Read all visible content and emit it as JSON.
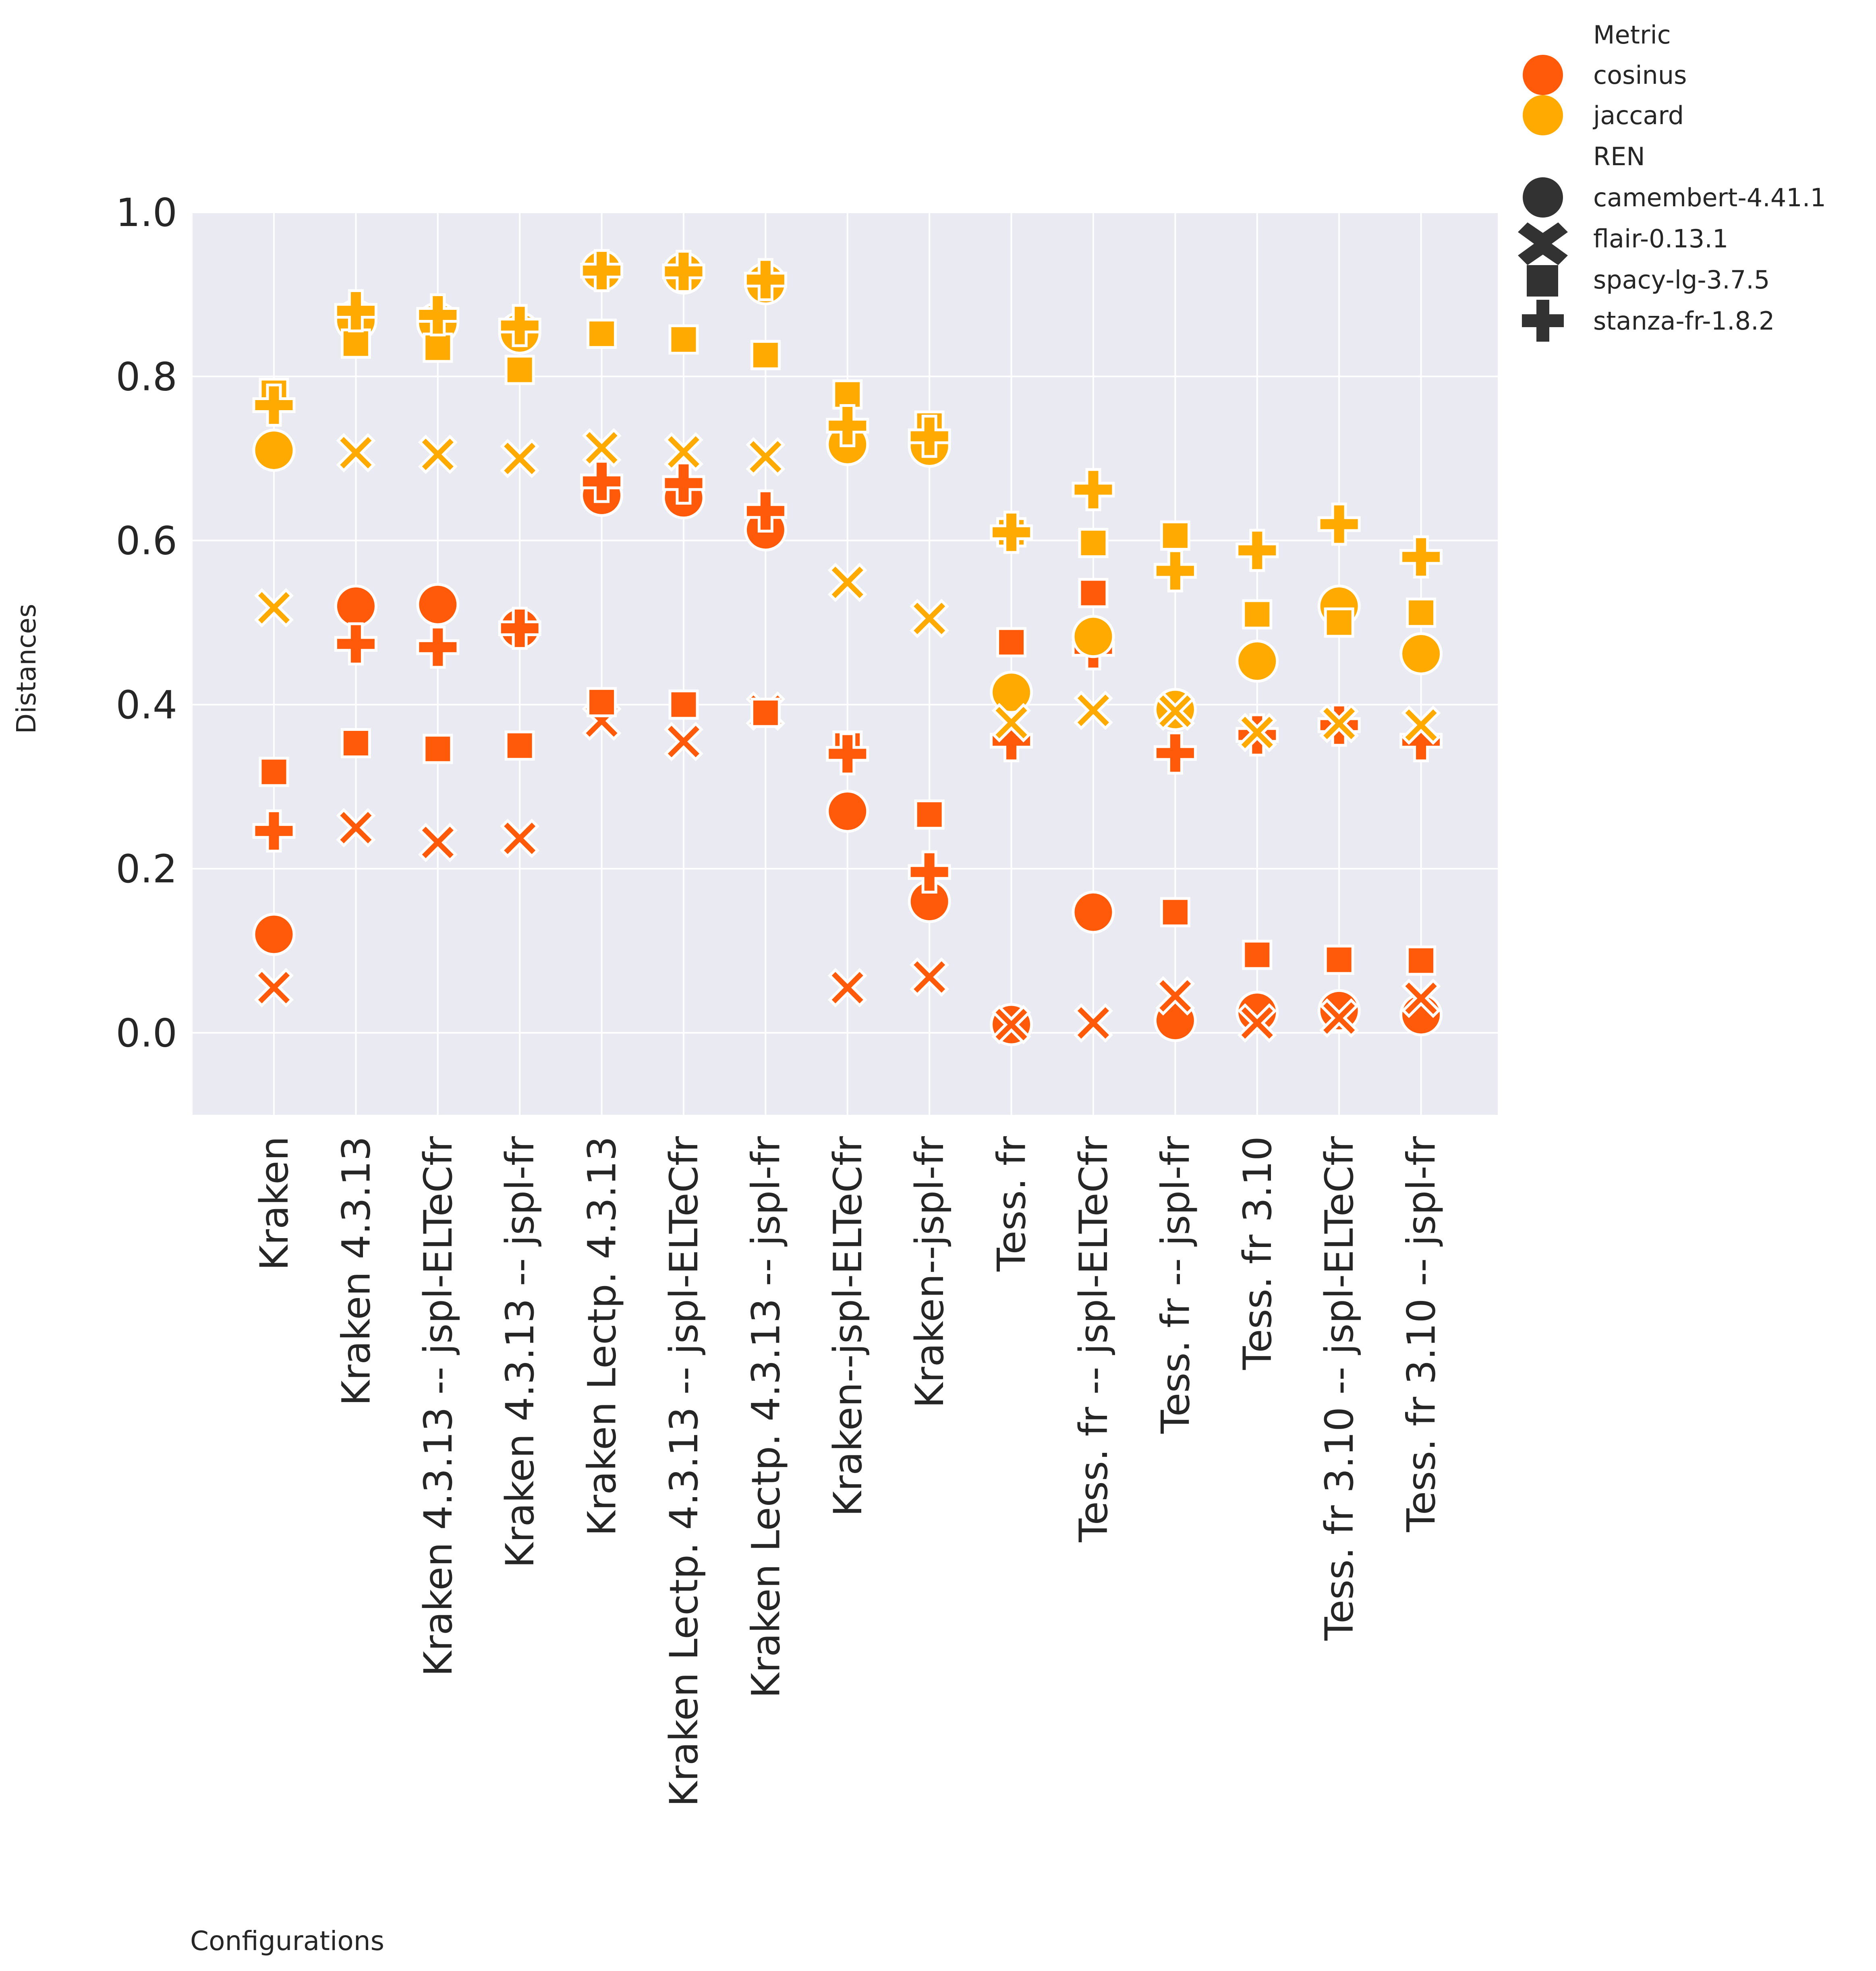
{
  "chart_data": {
    "type": "scatter",
    "title": "",
    "xlabel": "Configurations",
    "ylabel": "Distances",
    "ylim": [
      -0.1,
      1.0
    ],
    "yticks": [
      0.0,
      0.2,
      0.4,
      0.6,
      0.8,
      1.0
    ],
    "ytick_labels": [
      "0.0",
      "0.2",
      "0.4",
      "0.6",
      "0.8",
      "1.0"
    ],
    "grid": true,
    "legend_position": "upper right, outside plot",
    "categories": [
      "Kraken",
      "Kraken 4.3.13",
      "Kraken 4.3.13 -- jspl-ELTeCfr",
      "Kraken 4.3.13 -- jspl-fr",
      "Kraken Lectp. 4.3.13",
      "Kraken Lectp. 4.3.13 -- jspl-ELTeCfr",
      "Kraken Lectp. 4.3.13 -- jspl-fr",
      "Kraken--jspl-ELTeCfr",
      "Kraken--jspl-fr",
      "Tess. fr",
      "Tess. fr -- jspl-ELTeCfr",
      "Tess. fr -- jspl-fr",
      "Tess. fr 3.10",
      "Tess. fr 3.10 -- jspl-ELTeCfr",
      "Tess. fr 3.10 -- jspl-fr"
    ],
    "hue_title": "Metric",
    "style_title": "REN",
    "metrics": [
      {
        "name": "cosinus",
        "color": "#ff5a0a"
      },
      {
        "name": "jaccard",
        "color": "#ffaa00"
      }
    ],
    "rens": [
      {
        "name": "camembert-4.41.1",
        "marker": "circle"
      },
      {
        "name": "flair-0.13.1",
        "marker": "x"
      },
      {
        "name": "spacy-lg-3.7.5",
        "marker": "square"
      },
      {
        "name": "stanza-fr-1.8.2",
        "marker": "plus"
      }
    ],
    "series": [
      {
        "metric": "cosinus",
        "ren": "camembert-4.41.1",
        "values": [
          0.12,
          0.52,
          0.522,
          0.493,
          0.655,
          0.652,
          0.613,
          0.27,
          0.16,
          0.01,
          0.147,
          0.015,
          0.025,
          0.027,
          0.022
        ]
      },
      {
        "metric": "cosinus",
        "ren": "flair-0.13.1",
        "values": [
          0.055,
          0.25,
          0.232,
          0.237,
          0.38,
          0.355,
          0.392,
          0.055,
          0.068,
          0.01,
          0.012,
          0.045,
          0.012,
          0.018,
          0.042
        ]
      },
      {
        "metric": "cosinus",
        "ren": "spacy-lg-3.7.5",
        "values": [
          0.318,
          0.353,
          0.346,
          0.35,
          0.403,
          0.4,
          0.39,
          0.35,
          0.266,
          0.476,
          0.536,
          0.147,
          0.095,
          0.089,
          0.088
        ]
      },
      {
        "metric": "cosinus",
        "ren": "stanza-fr-1.8.2",
        "values": [
          0.246,
          0.474,
          0.47,
          0.493,
          0.672,
          0.67,
          0.636,
          0.34,
          0.196,
          0.356,
          0.468,
          0.341,
          0.363,
          0.375,
          0.356
        ]
      },
      {
        "metric": "jaccard",
        "ren": "camembert-4.41.1",
        "values": [
          0.71,
          0.868,
          0.865,
          0.853,
          0.929,
          0.926,
          0.913,
          0.717,
          0.715,
          0.415,
          0.483,
          0.394,
          0.453,
          0.52,
          0.462
        ]
      },
      {
        "metric": "jaccard",
        "ren": "flair-0.13.1",
        "values": [
          0.518,
          0.707,
          0.705,
          0.7,
          0.713,
          0.708,
          0.702,
          0.549,
          0.505,
          0.378,
          0.393,
          0.392,
          0.366,
          0.377,
          0.375
        ]
      },
      {
        "metric": "jaccard",
        "ren": "spacy-lg-3.7.5",
        "values": [
          0.78,
          0.84,
          0.835,
          0.808,
          0.852,
          0.845,
          0.826,
          0.778,
          0.74,
          0.61,
          0.597,
          0.606,
          0.51,
          0.5,
          0.512
        ]
      },
      {
        "metric": "jaccard",
        "ren": "stanza-fr-1.8.2",
        "values": [
          0.765,
          0.88,
          0.875,
          0.862,
          0.929,
          0.928,
          0.918,
          0.74,
          0.727,
          0.61,
          0.662,
          0.563,
          0.588,
          0.62,
          0.58
        ]
      }
    ]
  }
}
